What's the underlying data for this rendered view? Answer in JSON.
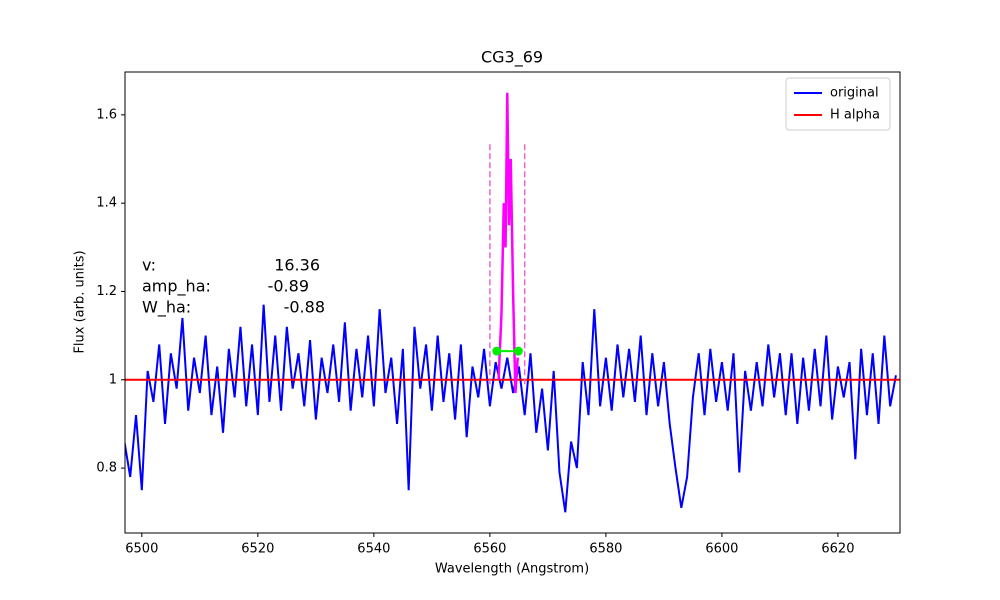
{
  "chart_data": {
    "type": "line",
    "title": "CG3_69",
    "x_label": "Wavelength (Angstrom)",
    "y_label": "Flux (arb. units)",
    "xlim": [
      6497.1,
      6630.7
    ],
    "ylim": [
      0.653,
      1.697
    ],
    "xticks": [
      6500,
      6520,
      6540,
      6560,
      6580,
      6600,
      6620
    ],
    "yticks": [
      0.8,
      1.0,
      1.2,
      1.4,
      1.6
    ],
    "legend": "upper right",
    "series": [
      {
        "name": "original",
        "color": "#0000ff",
        "x": [
          6497,
          6498,
          6499,
          6500,
          6501,
          6502,
          6503,
          6504,
          6505,
          6506,
          6507,
          6508,
          6509,
          6510,
          6511,
          6512,
          6513,
          6514,
          6515,
          6516,
          6517,
          6518,
          6519,
          6520,
          6521,
          6522,
          6523,
          6524,
          6525,
          6526,
          6527,
          6528,
          6529,
          6530,
          6531,
          6532,
          6533,
          6534,
          6535,
          6536,
          6537,
          6538,
          6539,
          6540,
          6541,
          6542,
          6543,
          6544,
          6545,
          6546,
          6547,
          6548,
          6549,
          6550,
          6551,
          6552,
          6553,
          6554,
          6555,
          6556,
          6557,
          6558,
          6559,
          6560,
          6561,
          6562,
          6563,
          6564,
          6565,
          6566,
          6567,
          6568,
          6569,
          6570,
          6571,
          6572,
          6573,
          6574,
          6575,
          6576,
          6577,
          6578,
          6579,
          6580,
          6581,
          6582,
          6583,
          6584,
          6585,
          6586,
          6587,
          6588,
          6589,
          6590,
          6591,
          6592,
          6593,
          6594,
          6595,
          6596,
          6597,
          6598,
          6599,
          6600,
          6601,
          6602,
          6603,
          6604,
          6605,
          6606,
          6607,
          6608,
          6609,
          6610,
          6611,
          6612,
          6613,
          6614,
          6615,
          6616,
          6617,
          6618,
          6619,
          6620,
          6621,
          6622,
          6623,
          6624,
          6625,
          6626,
          6627,
          6628,
          6629,
          6630
        ],
        "values": [
          0.86,
          0.78,
          0.92,
          0.75,
          1.02,
          0.95,
          1.08,
          0.9,
          1.06,
          0.98,
          1.14,
          0.93,
          1.05,
          0.97,
          1.1,
          0.92,
          1.03,
          0.88,
          1.07,
          0.96,
          1.12,
          0.94,
          1.08,
          0.92,
          1.17,
          0.95,
          1.1,
          0.93,
          1.12,
          0.98,
          1.06,
          0.94,
          1.09,
          0.91,
          1.05,
          0.97,
          1.08,
          0.95,
          1.13,
          0.93,
          1.07,
          0.96,
          1.1,
          0.94,
          1.16,
          0.97,
          1.05,
          0.9,
          1.07,
          0.75,
          1.12,
          0.98,
          1.08,
          0.93,
          1.1,
          0.95,
          1.06,
          0.91,
          1.08,
          0.87,
          1.03,
          0.96,
          1.07,
          0.94,
          1.04,
          0.98,
          1.05,
          0.97,
          1.03,
          0.92,
          1.06,
          0.88,
          0.98,
          0.84,
          1.02,
          0.79,
          0.7,
          0.86,
          0.8,
          1.04,
          0.92,
          1.16,
          0.94,
          1.05,
          0.93,
          1.08,
          0.96,
          1.07,
          0.95,
          1.1,
          0.92,
          1.06,
          0.94,
          1.04,
          0.9,
          0.8,
          0.71,
          0.78,
          0.96,
          1.06,
          0.92,
          1.07,
          0.95,
          1.04,
          0.93,
          1.06,
          0.79,
          1.02,
          0.93,
          1.04,
          0.94,
          1.08,
          0.96,
          1.06,
          0.92,
          1.06,
          0.9,
          1.05,
          0.93,
          1.07,
          0.94,
          1.1,
          0.91,
          1.03,
          0.96,
          1.04,
          0.82,
          1.07,
          0.92,
          1.06,
          0.9,
          1.1,
          0.94,
          1.01
        ]
      },
      {
        "name": "H alpha",
        "color": "#ff0000",
        "x": [
          6497.1,
          6630.7
        ],
        "values": [
          1.0,
          1.0
        ]
      }
    ],
    "fit": {
      "color": "#ff00ff",
      "x": [
        6561.5,
        6562,
        6562.4,
        6562.7,
        6563,
        6563.3,
        6563.6,
        6564,
        6564.4,
        6564.8
      ],
      "values": [
        1.0,
        1.15,
        1.4,
        1.3,
        1.65,
        1.35,
        1.5,
        1.2,
        0.97,
        1.05
      ]
    },
    "bounds": {
      "color": "#ee66cc",
      "x": [
        6560,
        6566
      ],
      "values": [
        0.99,
        1.54
      ]
    },
    "fwhm": {
      "color": "#00ee00",
      "x": [
        6561.2,
        6564.9
      ],
      "values": [
        1.065,
        1.065
      ]
    },
    "annotations": [
      {
        "label": "v:",
        "value": 16.36
      },
      {
        "label": "amp_ha:",
        "value": -0.89
      },
      {
        "label": "W_ha:",
        "value": -0.88
      }
    ]
  }
}
